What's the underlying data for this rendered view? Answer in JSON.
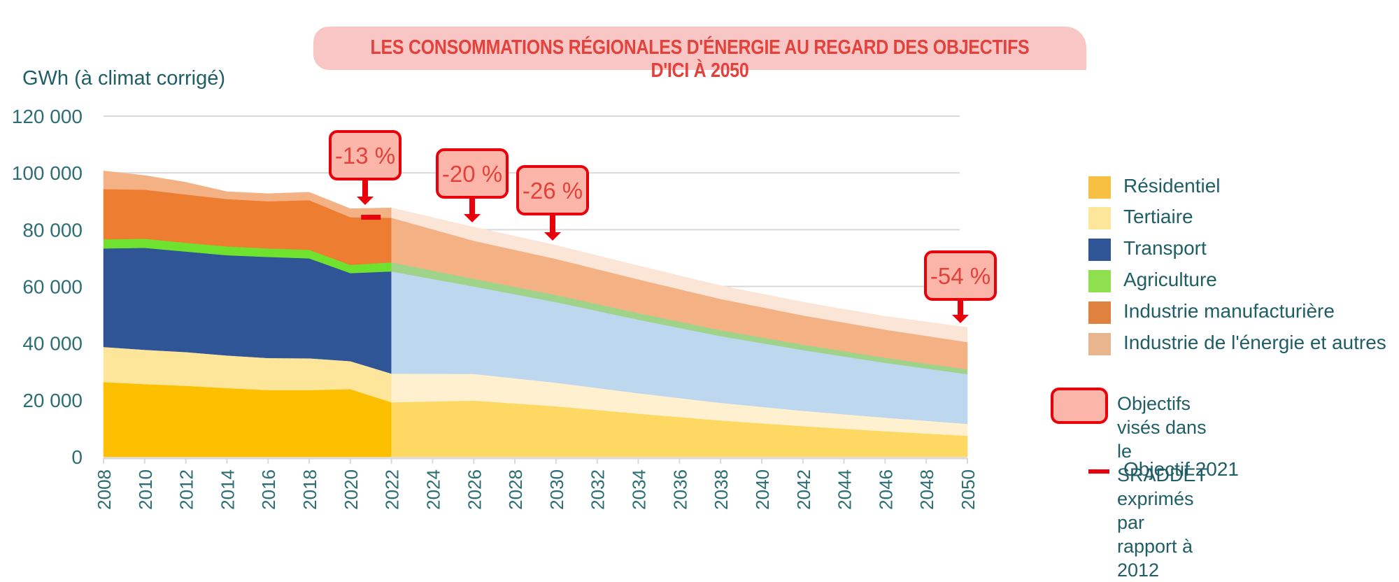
{
  "title": "LES CONSOMMATIONS RÉGIONALES D'ÉNERGIE AU REGARD DES OBJECTIFS D'ICI À 2050",
  "unit_label": "GWh (à climat corrigé)",
  "colors": {
    "residentiel": "#fdc000",
    "residentiel_future": "#fdd862",
    "tertiaire": "#fde59a",
    "tertiaire_future": "#fff0cf",
    "transport": "#2f5597",
    "transport_future": "#bdd7ee",
    "agriculture": "#6ee22e",
    "agriculture_future": "#9fd38a",
    "industrie_manu": "#ed7d31",
    "industrie_manu_future": "#f4b183",
    "industrie_energie": "#f4b183",
    "industrie_energie_future": "#fbe5d6",
    "objective_red": "#e8000b",
    "objective_fill": "#fbb6a9",
    "axis_text": "#2d6d74",
    "gridline": "#d9d9d9"
  },
  "legend": {
    "items": [
      {
        "label": "Résidentiel",
        "color": "#f6c143"
      },
      {
        "label": "Tertiaire",
        "color": "#fde59a"
      },
      {
        "label": "Transport",
        "color": "#2f5597"
      },
      {
        "label": "Agriculture",
        "color": "#8ee04f"
      },
      {
        "label": "Industrie manufacturière",
        "color": "#e0823f"
      },
      {
        "label": "Industrie de l'énergie et autres",
        "color": "#e9b58e"
      }
    ],
    "objectives_label_line1": "Objectifs visés dans le SRADDET",
    "objectives_label_line2": "exprimés par rapport à 2012",
    "objective_2021_label": "Objectif 2021"
  },
  "chart_data": {
    "type": "area",
    "stacked": true,
    "title": "LES CONSOMMATIONS RÉGIONALES D'ÉNERGIE AU REGARD DES OBJECTIFS D'ICI À 2050",
    "ylabel": "GWh (à climat corrigé)",
    "xlabel": "",
    "ylim": [
      0,
      120000
    ],
    "yticks": [
      0,
      20000,
      40000,
      60000,
      80000,
      100000,
      120000
    ],
    "ytick_labels": [
      "0",
      "20 000",
      "40 000",
      "60 000",
      "80 000",
      "100 000",
      "120 000"
    ],
    "xticks": [
      "2008",
      "2010",
      "2012",
      "2014",
      "2016",
      "2018",
      "2020",
      "2022",
      "2024",
      "2026",
      "2028",
      "2030",
      "2032",
      "2034",
      "2036",
      "2038",
      "2040",
      "2042",
      "2044",
      "2046",
      "2048",
      "2050"
    ],
    "grid": true,
    "legend_position": "right",
    "projection_starts": 2022,
    "x": [
      2008,
      2010,
      2012,
      2014,
      2016,
      2018,
      2020,
      2022,
      2026,
      2030,
      2034,
      2038,
      2042,
      2046,
      2050
    ],
    "series": [
      {
        "name": "Résidentiel",
        "values": [
          26300,
          25600,
          25000,
          24200,
          23500,
          23500,
          23800,
          19200,
          19800,
          17800,
          15200,
          12800,
          10800,
          9000,
          7400
        ]
      },
      {
        "name": "Tertiaire",
        "values": [
          12400,
          12100,
          11900,
          11500,
          11300,
          11200,
          9900,
          10100,
          9400,
          8300,
          7200,
          6200,
          5400,
          4800,
          4200
        ]
      },
      {
        "name": "Transport",
        "values": [
          34700,
          35900,
          35400,
          35300,
          35600,
          35200,
          31000,
          36000,
          30800,
          28400,
          25900,
          23500,
          21400,
          19300,
          17500
        ]
      },
      {
        "name": "Agriculture",
        "values": [
          3200,
          3200,
          3100,
          3100,
          3000,
          3000,
          2900,
          3200,
          2700,
          2500,
          2300,
          2100,
          1900,
          1800,
          1700
        ]
      },
      {
        "name": "Industrie manufacturière",
        "values": [
          17700,
          17300,
          17000,
          16700,
          16600,
          17500,
          16800,
          15700,
          13400,
          12700,
          11900,
          11000,
          10300,
          9900,
          9600
        ]
      },
      {
        "name": "Industrie de l'énergie et autres",
        "values": [
          6400,
          5000,
          4300,
          2600,
          2700,
          2800,
          3000,
          3500,
          4800,
          4800,
          4800,
          4700,
          4700,
          4700,
          5200
        ]
      }
    ],
    "annotations": [
      {
        "label": "-13 %",
        "year": 2021,
        "type": "objective"
      },
      {
        "label": "-20 %",
        "year": 2026,
        "type": "objective"
      },
      {
        "label": "-26 %",
        "year": 2030,
        "type": "objective"
      },
      {
        "label": "-54 %",
        "year": 2050,
        "type": "objective"
      }
    ],
    "objective_2021_value": 84500
  }
}
